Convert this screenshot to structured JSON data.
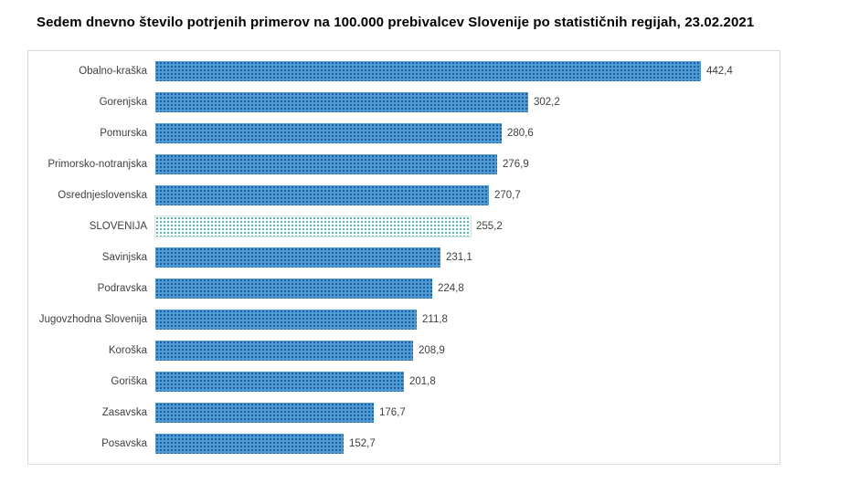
{
  "chart_data": {
    "type": "bar",
    "orientation": "horizontal",
    "title": "Sedem dnevno število potrjenih primerov na 100.000 prebivalcev Slovenije po statističnih regijah, 23.02.2021",
    "xlabel": "",
    "ylabel": "",
    "xlim": [
      0,
      470
    ],
    "grid": false,
    "legend": "none",
    "bar_color": "#4f9ad2",
    "highlight_bar_color": "#8ec7c0",
    "highlight_index": 5,
    "highlight_category": "SLOVENIJA",
    "categories": [
      "Obalno-kraška",
      "Gorenjska",
      "Pomurska",
      "Primorsko-notranjska",
      "Osrednjeslovenska",
      "SLOVENIJA",
      "Savinjska",
      "Podravska",
      "Jugovzhodna Slovenija",
      "Koroška",
      "Goriška",
      "Zasavska",
      "Posavska"
    ],
    "values": [
      442.4,
      302.2,
      280.6,
      276.9,
      270.7,
      255.2,
      231.1,
      224.8,
      211.8,
      208.9,
      201.8,
      176.7,
      152.7
    ],
    "value_labels": [
      "442,4",
      "302,2",
      "280,6",
      "276,9",
      "270,7",
      "255,2",
      "231,1",
      "224,8",
      "211,8",
      "208,9",
      "201,8",
      "176,7",
      "152,7"
    ]
  }
}
